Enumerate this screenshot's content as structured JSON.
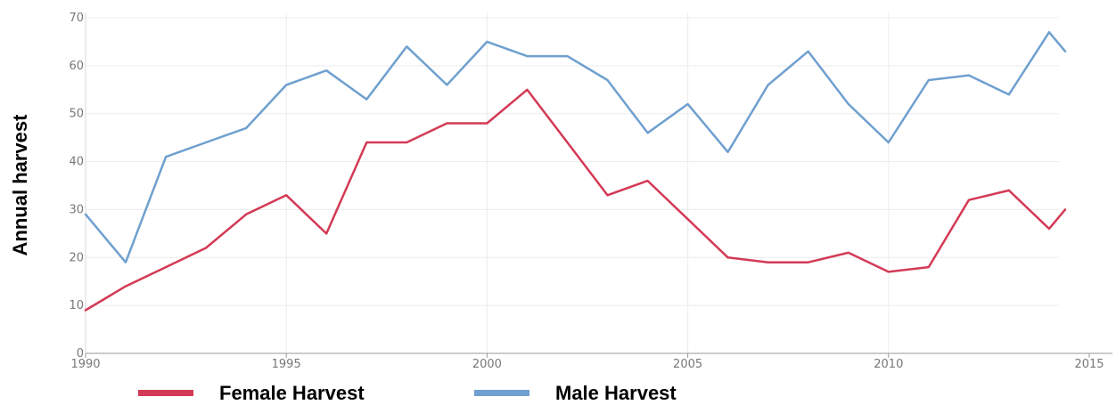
{
  "chart_data": {
    "type": "line",
    "ylabel": "Annual harvest",
    "xlabel": "",
    "xlim": [
      1990,
      2015
    ],
    "ylim": [
      0,
      70
    ],
    "x_ticks": [
      1990,
      1995,
      2000,
      2005,
      2010,
      2015
    ],
    "y_ticks": [
      0,
      10,
      20,
      30,
      40,
      50,
      60,
      70
    ],
    "grid": true,
    "legend_position": "bottom",
    "x": [
      1990,
      1991,
      1992,
      1993,
      1994,
      1995,
      1996,
      1997,
      1998,
      1999,
      2000,
      2001,
      2002,
      2003,
      2004,
      2005,
      2006,
      2007,
      2008,
      2009,
      2010,
      2011,
      2012,
      2013,
      2014,
      2014.4
    ],
    "series": [
      {
        "name": "Female Harvest",
        "color": "#d33a55",
        "values": [
          9,
          14,
          18,
          22,
          29,
          33,
          25,
          44,
          44,
          48,
          48,
          55,
          44,
          33,
          36,
          28,
          20,
          19,
          19,
          21,
          17,
          18,
          32,
          34,
          26,
          30
        ]
      },
      {
        "name": "Male Harvest",
        "color": "#6fa0cf",
        "values": [
          29,
          19,
          41,
          44,
          47,
          56,
          59,
          53,
          64,
          56,
          65,
          62,
          62,
          57,
          46,
          52,
          42,
          56,
          63,
          52,
          44,
          57,
          58,
          54,
          67,
          63
        ]
      }
    ]
  }
}
